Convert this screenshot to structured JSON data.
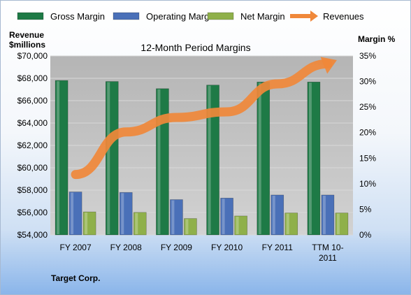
{
  "chart_data": {
    "type": "bar",
    "title": "12-Month Period Margins",
    "categories": [
      "FY 2007",
      "FY 2008",
      "FY 2009",
      "FY 2010",
      "FY 2011",
      "TTM 10-2011"
    ],
    "category_lines": [
      [
        "FY 2007"
      ],
      [
        "FY 2008"
      ],
      [
        "FY 2009"
      ],
      [
        "FY 2010"
      ],
      [
        "FY 2011"
      ],
      [
        "TTM 10-",
        "2011"
      ]
    ],
    "left_axis": {
      "label_lines": [
        "Revenue",
        "$millions"
      ],
      "min": 54000,
      "max": 70000,
      "step": 2000,
      "tick_labels": [
        "$54,000",
        "$56,000",
        "$58,000",
        "$60,000",
        "$62,000",
        "$64,000",
        "$66,000",
        "$68,000",
        "$70,000"
      ]
    },
    "right_axis": {
      "label": "Margin %",
      "min": 0,
      "max": 35,
      "step": 5,
      "tick_labels": [
        "0%",
        "5%",
        "10%",
        "15%",
        "20%",
        "25%",
        "30%",
        "35%"
      ]
    },
    "series": [
      {
        "name": "Gross Margin",
        "axis": "right",
        "kind": "bar",
        "color": "#1e7a46",
        "values": [
          30.2,
          30.0,
          28.6,
          29.3,
          29.9,
          29.9
        ]
      },
      {
        "name": "Operating Margin",
        "axis": "right",
        "kind": "bar",
        "color": "#4a70b8",
        "values": [
          8.4,
          8.3,
          6.9,
          7.2,
          7.8,
          7.8
        ]
      },
      {
        "name": "Net Margin",
        "axis": "right",
        "kind": "bar",
        "color": "#8fb04a",
        "values": [
          4.5,
          4.4,
          3.2,
          3.7,
          4.3,
          4.3
        ]
      },
      {
        "name": "Revenues",
        "axis": "left",
        "kind": "line",
        "color": "#f0883a",
        "values": [
          59400,
          63200,
          64500,
          65000,
          67500,
          69300
        ]
      }
    ],
    "grid": true,
    "legend_position": "top",
    "colors": {
      "plot_background": "#bfbfbf",
      "gridline": "#d9d9d9"
    }
  },
  "footer": {
    "company": "Target Corp."
  }
}
